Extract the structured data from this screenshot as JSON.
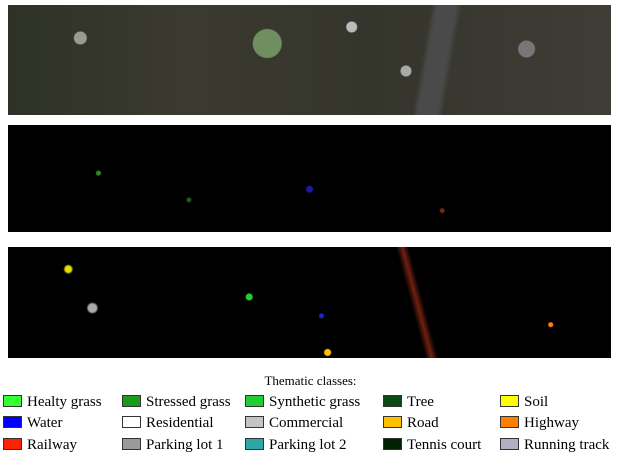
{
  "legend": {
    "title": "Thematic classes:",
    "items": [
      {
        "label": "Healty grass",
        "color": "#33ff33"
      },
      {
        "label": "Stressed grass",
        "color": "#1c9a1c"
      },
      {
        "label": "Synthetic grass",
        "color": "#22cc33"
      },
      {
        "label": "Tree",
        "color": "#0b4a14"
      },
      {
        "label": "Soil",
        "color": "#ffff00"
      },
      {
        "label": "Water",
        "color": "#0000ff"
      },
      {
        "label": "Residential",
        "color": "#ffffff"
      },
      {
        "label": "Commercial",
        "color": "#c4c4c4"
      },
      {
        "label": "Road",
        "color": "#ffbf00"
      },
      {
        "label": "Highway",
        "color": "#ff8000"
      },
      {
        "label": "Railway",
        "color": "#ff2200"
      },
      {
        "label": "Parking lot 1",
        "color": "#9a9a9a"
      },
      {
        "label": "Parking lot 2",
        "color": "#2ea6a6"
      },
      {
        "label": "Tennis court",
        "color": "#002200"
      },
      {
        "label": "Running track",
        "color": "#b4aec4"
      }
    ]
  }
}
